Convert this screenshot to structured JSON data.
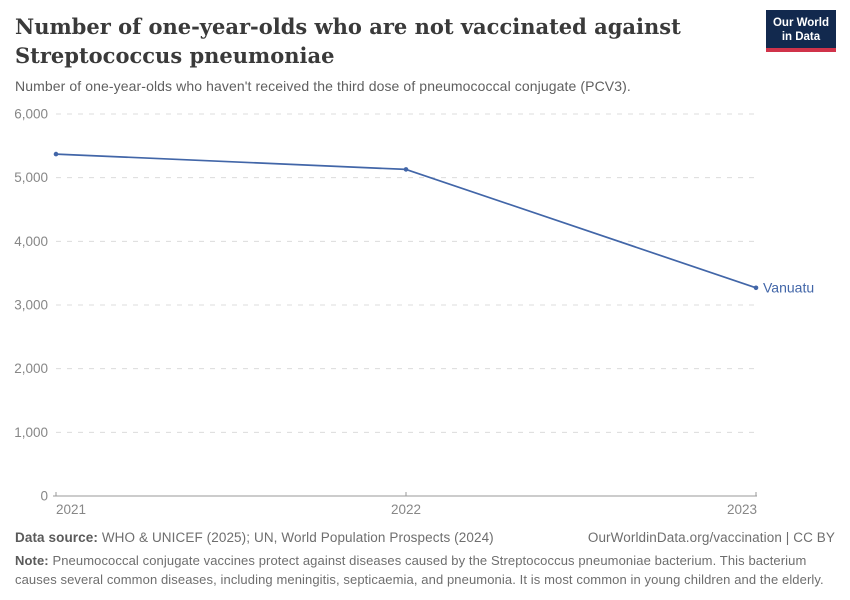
{
  "header": {
    "title_line1": "Number of one-year-olds who are not vaccinated against",
    "title_line2": "Streptococcus pneumoniae",
    "subtitle": "Number of one-year-olds who haven't received the third dose of pneumococcal conjugate (PCV3).",
    "logo": {
      "line1": "Our World",
      "line2": "in Data",
      "bg_color": "#12294e",
      "underline_color": "#d0334a"
    }
  },
  "chart_data": {
    "type": "line",
    "title": "Number of one-year-olds who are not vaccinated against Streptococcus pneumoniae",
    "subtitle": "Number of one-year-olds who haven't received the third dose of pneumococcal conjugate (PCV3).",
    "x": [
      2021,
      2022,
      2023
    ],
    "series": [
      {
        "name": "Vanuatu",
        "values": [
          5370,
          5130,
          3270
        ],
        "color": "#4266a8"
      }
    ],
    "xlabel": "",
    "ylabel": "",
    "ylim": [
      0,
      6000
    ],
    "ytick_step": 1000,
    "ytick_labels": [
      "0",
      "1,000",
      "2,000",
      "3,000",
      "4,000",
      "5,000",
      "6,000"
    ],
    "grid": "horizontal-dashed",
    "legend_position": "end-of-line-label",
    "marker": "dot"
  },
  "footer": {
    "datasource_label": "Data source:",
    "datasource_text": "WHO & UNICEF (2025); UN, World Population Prospects (2024)",
    "attribution": "OurWorldinData.org/vaccination | CC BY",
    "note_label": "Note:",
    "note_text": "Pneumococcal conjugate vaccines protect against diseases caused by the Streptococcus pneumoniae bacterium. This bacterium causes several common diseases, including meningitis, septicaemia, and pneumonia. It is most common in young children and the elderly."
  },
  "colors": {
    "accent_line": "#4266a8",
    "grid": "#dcdcdc",
    "axis": "#999999",
    "tick_text": "#878787",
    "title_text": "#3a3a3a"
  }
}
